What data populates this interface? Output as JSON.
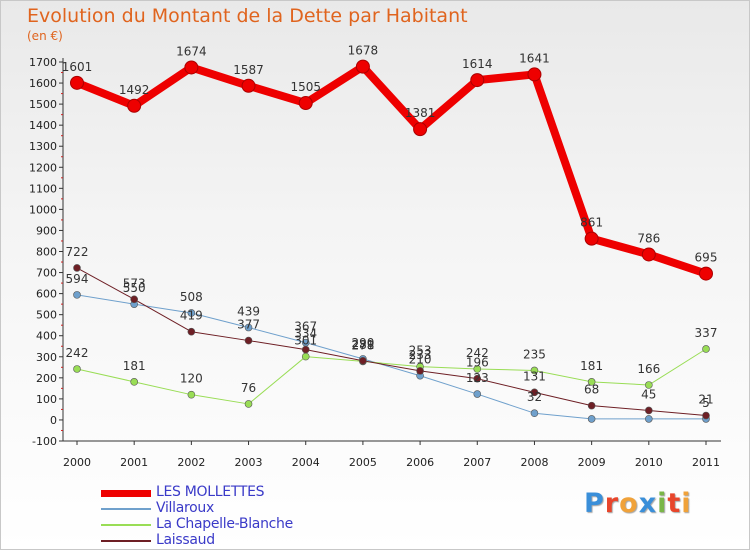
{
  "header": {
    "title": "Evolution du Montant de la Dette par Habitant",
    "unit": "(en €)"
  },
  "logo": {
    "text": "Proxiti",
    "colors": [
      "#3a8fd9",
      "#e8452b",
      "#f0a23a",
      "#3a8fd9",
      "#7ab648",
      "#e8452b",
      "#f0a23a"
    ]
  },
  "chart_data": {
    "type": "line",
    "title": "Evolution du Montant de la Dette par Habitant",
    "ylabel": "(en €)",
    "xlabel": "",
    "x": [
      "2000",
      "2001",
      "2002",
      "2003",
      "2004",
      "2005",
      "2006",
      "2007",
      "2008",
      "2009",
      "2010",
      "2011"
    ],
    "ylim": [
      -100,
      1700
    ],
    "yticks": [
      -100,
      0,
      100,
      200,
      300,
      400,
      500,
      600,
      700,
      800,
      900,
      1000,
      1100,
      1200,
      1300,
      1400,
      1500,
      1600,
      1700
    ],
    "grid": false,
    "legend_position": "bottom-left",
    "series": [
      {
        "name": "LES MOLLETTES",
        "color": "#ee0000",
        "values": [
          1601,
          1492,
          1674,
          1587,
          1505,
          1678,
          1381,
          1614,
          1641,
          861,
          786,
          695
        ],
        "labels": [
          "1601",
          "1492",
          "1674",
          "1587",
          "1505",
          "1678",
          "1381",
          "1614",
          "1641",
          "861",
          "786",
          "695"
        ]
      },
      {
        "name": "Villaroux",
        "color": "#6fa0cc",
        "values": [
          594,
          550,
          508,
          439,
          367,
          290,
          210,
          123,
          32,
          5,
          5,
          5
        ],
        "labels": [
          "594",
          "550",
          "508",
          "439",
          "367",
          "290",
          "210",
          "123",
          "32",
          "",
          "",
          "5"
        ]
      },
      {
        "name": "La Chapelle-Blanche",
        "color": "#99dd55",
        "values": [
          242,
          181,
          120,
          76,
          301,
          278,
          253,
          242,
          235,
          181,
          166,
          337
        ],
        "labels": [
          "242",
          "181",
          "120",
          "76",
          "301",
          "278",
          "253",
          "242",
          "235",
          "181",
          "166",
          "337"
        ]
      },
      {
        "name": "Laissaud",
        "color": "#6e1f25",
        "values": [
          722,
          573,
          419,
          377,
          334,
          281,
          233,
          196,
          131,
          68,
          45,
          21
        ],
        "labels": [
          "722",
          "573",
          "419",
          "377",
          "334",
          "281",
          "233",
          "196",
          "131",
          "68",
          "45",
          "21"
        ]
      }
    ]
  }
}
